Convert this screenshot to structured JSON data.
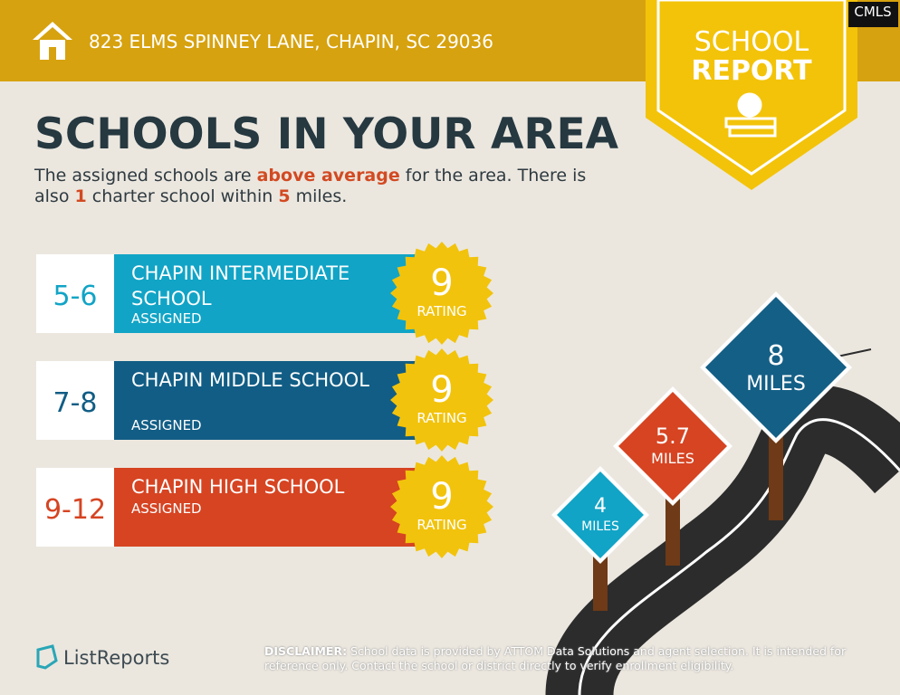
{
  "header": {
    "address": "823 ELMS SPINNEY LANE, CHAPIN, SC 29036",
    "corner_logo": "CMLS"
  },
  "badge": {
    "line1": "SCHOOL",
    "line2": "REPORT"
  },
  "title": "SCHOOLS IN YOUR AREA",
  "intro": {
    "parts": [
      "The assigned schools are ",
      "above average",
      " for the area. There is",
      "also ",
      "1",
      " charter school within ",
      "5",
      " miles."
    ]
  },
  "schools": [
    {
      "grades": "5-6",
      "name": "CHAPIN INTERMEDIATE SCHOOL",
      "status": "ASSIGNED",
      "rating": 9,
      "rating_label": "RATING"
    },
    {
      "grades": "7-8",
      "name": "CHAPIN MIDDLE SCHOOL",
      "status": "ASSIGNED",
      "rating": 9,
      "rating_label": "RATING"
    },
    {
      "grades": "9-12",
      "name": "CHAPIN HIGH SCHOOL",
      "status": "ASSIGNED",
      "rating": 9,
      "rating_label": "RATING"
    }
  ],
  "signs": [
    {
      "distance": 8,
      "unit": "MILES"
    },
    {
      "distance": 5.7,
      "unit": "MILES"
    },
    {
      "distance": 4,
      "unit": "MILES"
    }
  ],
  "footer": {
    "brand": "ListReports",
    "disclaimer_label": "DISCLAIMER:",
    "disclaimer": " School data is provided by ATTOM Data Solutions and agent selection. It is intended for reference only. Contact the school or district directly to verify enrollment eligibility."
  }
}
